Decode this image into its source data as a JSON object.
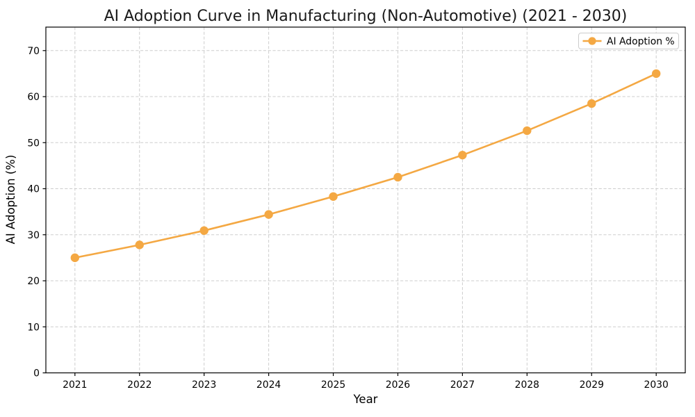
{
  "figure": {
    "background_color": "#ffffff",
    "spine_color": "#000000",
    "text_color": "#000000"
  },
  "chart_data": {
    "type": "line",
    "title": "AI Adoption Curve in Manufacturing (Non-Automotive) (2021 - 2030)",
    "xlabel": "Year",
    "ylabel": "AI Adoption (%)",
    "x": [
      2021,
      2022,
      2023,
      2024,
      2025,
      2026,
      2027,
      2028,
      2029,
      2030
    ],
    "series": [
      {
        "name": "AI Adoption %",
        "values": [
          25.0,
          27.8,
          30.9,
          34.4,
          38.3,
          42.5,
          47.3,
          52.6,
          58.5,
          65.0
        ],
        "color": "#F4A843",
        "marker": "circle",
        "marker_radius": 6.2,
        "line_width": 2.6
      }
    ],
    "xticks": [
      2021,
      2022,
      2023,
      2024,
      2025,
      2026,
      2027,
      2028,
      2029,
      2030
    ],
    "yticks": [
      0,
      10,
      20,
      30,
      40,
      50,
      60,
      70
    ],
    "xlim": [
      2020.55,
      2030.45
    ],
    "ylim": [
      0,
      75.1
    ],
    "grid": true,
    "grid_color": "#cdcdcd",
    "grid_style": "dashed",
    "legend": {
      "position": "upper right",
      "border_color": "#cccccc",
      "background_color": "#ffffff"
    }
  }
}
